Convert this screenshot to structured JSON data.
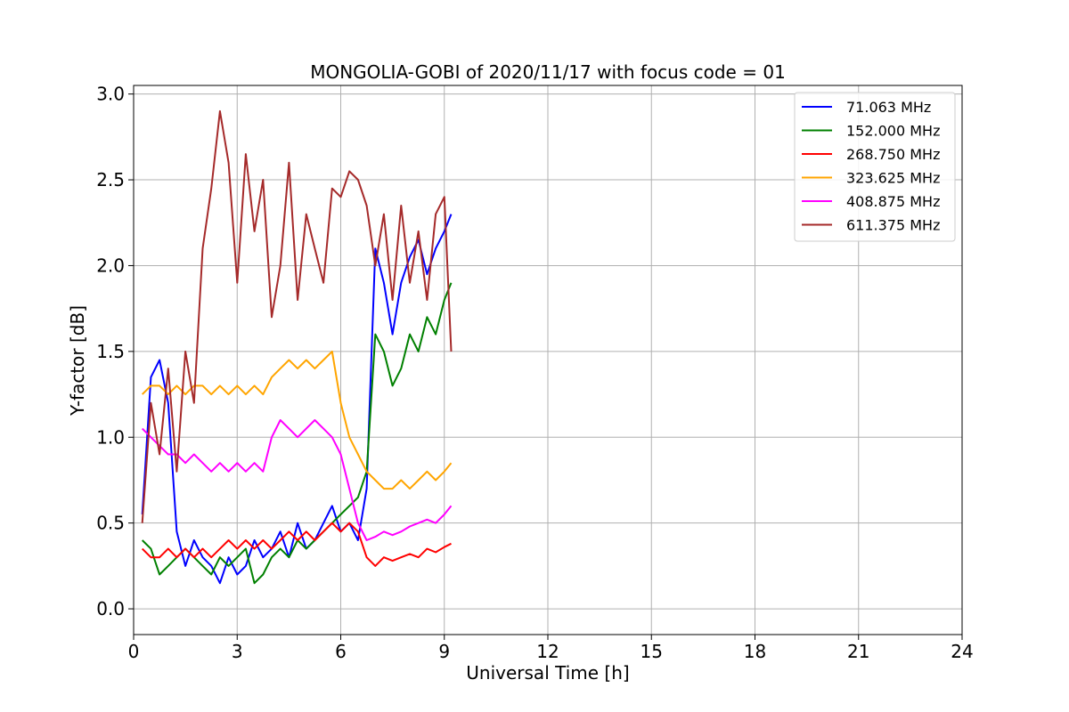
{
  "chart_data": {
    "type": "line",
    "title": "MONGOLIA-GOBI of 2020/11/17 with focus code = 01",
    "xlabel": "Universal Time [h]",
    "ylabel": "Y-factor [dB]",
    "xlim": [
      0,
      24
    ],
    "ylim": [
      -0.15,
      3.05
    ],
    "x_ticks": [
      "0",
      "3",
      "6",
      "9",
      "12",
      "15",
      "18",
      "21",
      "24"
    ],
    "y_ticks": [
      "0.0",
      "0.5",
      "1.0",
      "1.5",
      "2.0",
      "2.5",
      "3.0"
    ],
    "grid": true,
    "legend_position": "top-right",
    "x": [
      0.25,
      0.5,
      0.75,
      1.0,
      1.25,
      1.5,
      1.75,
      2.0,
      2.25,
      2.5,
      2.75,
      3.0,
      3.25,
      3.5,
      3.75,
      4.0,
      4.25,
      4.5,
      4.75,
      5.0,
      5.25,
      5.5,
      5.75,
      6.0,
      6.25,
      6.5,
      6.75,
      7.0,
      7.25,
      7.5,
      7.75,
      8.0,
      8.25,
      8.5,
      8.75,
      9.0,
      9.2
    ],
    "series": [
      {
        "name": "71.063 MHz",
        "color": "#0000ff",
        "values": [
          0.55,
          1.35,
          1.45,
          1.2,
          0.45,
          0.25,
          0.4,
          0.3,
          0.25,
          0.15,
          0.3,
          0.2,
          0.25,
          0.4,
          0.3,
          0.35,
          0.45,
          0.3,
          0.5,
          0.35,
          0.4,
          0.5,
          0.6,
          0.45,
          0.5,
          0.4,
          0.7,
          2.1,
          1.9,
          1.6,
          1.9,
          2.05,
          2.15,
          1.95,
          2.1,
          2.2,
          2.3
        ]
      },
      {
        "name": "152.000 MHz",
        "color": "#008000",
        "values": [
          0.4,
          0.35,
          0.2,
          0.25,
          0.3,
          0.35,
          0.3,
          0.25,
          0.2,
          0.3,
          0.25,
          0.3,
          0.35,
          0.15,
          0.2,
          0.3,
          0.35,
          0.3,
          0.4,
          0.35,
          0.4,
          0.45,
          0.5,
          0.55,
          0.6,
          0.65,
          0.8,
          1.6,
          1.5,
          1.3,
          1.4,
          1.6,
          1.5,
          1.7,
          1.6,
          1.8,
          1.9
        ]
      },
      {
        "name": "268.750 MHz",
        "color": "#ff0000",
        "values": [
          0.35,
          0.3,
          0.3,
          0.35,
          0.3,
          0.35,
          0.3,
          0.35,
          0.3,
          0.35,
          0.4,
          0.35,
          0.4,
          0.35,
          0.4,
          0.35,
          0.4,
          0.45,
          0.4,
          0.45,
          0.4,
          0.45,
          0.5,
          0.45,
          0.5,
          0.45,
          0.3,
          0.25,
          0.3,
          0.28,
          0.3,
          0.32,
          0.3,
          0.35,
          0.33,
          0.36,
          0.38
        ]
      },
      {
        "name": "323.625 MHz",
        "color": "#ffa500",
        "values": [
          1.25,
          1.3,
          1.3,
          1.25,
          1.3,
          1.25,
          1.3,
          1.3,
          1.25,
          1.3,
          1.25,
          1.3,
          1.25,
          1.3,
          1.25,
          1.35,
          1.4,
          1.45,
          1.4,
          1.45,
          1.4,
          1.45,
          1.5,
          1.2,
          1.0,
          0.9,
          0.8,
          0.75,
          0.7,
          0.7,
          0.75,
          0.7,
          0.75,
          0.8,
          0.75,
          0.8,
          0.85
        ]
      },
      {
        "name": "408.875 MHz",
        "color": "#ff00ff",
        "values": [
          1.05,
          1.0,
          0.95,
          0.9,
          0.9,
          0.85,
          0.9,
          0.85,
          0.8,
          0.85,
          0.8,
          0.85,
          0.8,
          0.85,
          0.8,
          1.0,
          1.1,
          1.05,
          1.0,
          1.05,
          1.1,
          1.05,
          1.0,
          0.9,
          0.7,
          0.5,
          0.4,
          0.42,
          0.45,
          0.43,
          0.45,
          0.48,
          0.5,
          0.52,
          0.5,
          0.55,
          0.6
        ]
      },
      {
        "name": "611.375 MHz",
        "color": "#a52a2a",
        "values": [
          0.5,
          1.2,
          0.9,
          1.4,
          0.8,
          1.5,
          1.2,
          2.1,
          2.45,
          2.9,
          2.6,
          1.9,
          2.65,
          2.2,
          2.5,
          1.7,
          2.0,
          2.6,
          1.8,
          2.3,
          2.1,
          1.9,
          2.45,
          2.4,
          2.55,
          2.5,
          2.35,
          2.0,
          2.3,
          1.8,
          2.35,
          1.9,
          2.2,
          1.8,
          2.3,
          2.4,
          1.5
        ]
      }
    ]
  }
}
